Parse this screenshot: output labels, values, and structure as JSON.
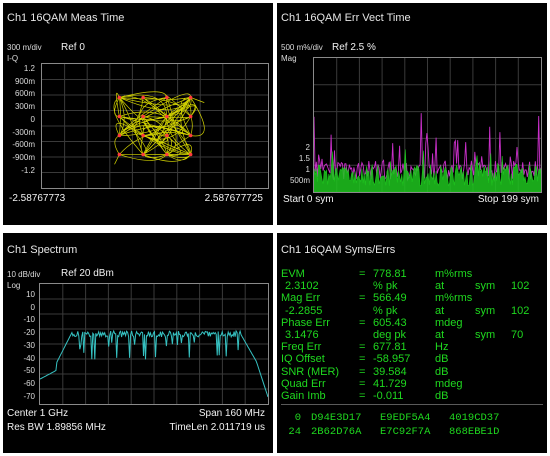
{
  "constellation": {
    "title": "Ch1 16QAM Meas Time",
    "scale": "300 m/div",
    "ref": "Ref 0",
    "format": "I-Q",
    "y_ticks": [
      "1.2",
      "900m",
      "600m",
      "300m",
      "0",
      "-300m",
      "-600m",
      "-900m",
      "-1.2"
    ],
    "x_left": "-2.58767773",
    "x_right": "2.587677725",
    "trace_color": "#e6e600",
    "symbol_color": "#ff3b3b"
  },
  "errvect": {
    "title": "Ch1 16QAM Err Vect Time",
    "scale": "500 m%/div",
    "ref": "Ref 2.5  %",
    "format": "Mag",
    "y_ticks": [
      "2",
      "1.5",
      "1",
      "500m"
    ],
    "start": "Start 0  sym",
    "stop": "Stop 199  sym",
    "trace_colors": [
      "#1fc51f",
      "#c92fc9"
    ]
  },
  "spectrum": {
    "title": "Ch1 Spectrum",
    "scale": "10 dB/div",
    "ref": "Ref 20 dBm",
    "format": "Log",
    "y_ticks": [
      "10",
      "0",
      "-10",
      "-20",
      "-30",
      "-40",
      "-50",
      "-60",
      "-70"
    ],
    "center": "Center 1 GHz",
    "span": "Span 160 MHz",
    "res_bw": "Res BW 1.89856 MHz",
    "timelen": "TimeLen 2.011719 us",
    "trace_color": "#36c2c2"
  },
  "syms": {
    "title": "Ch1 16QAM Syms/Errs",
    "rows": [
      {
        "name": "EVM",
        "eq": "=",
        "value": "778.81",
        "unit": "m%rms",
        "extra": "",
        "num": ""
      },
      {
        "name": "2.3102",
        "eq": "",
        "value": "% pk",
        "unit": "at",
        "extra": "sym",
        "num": "102"
      },
      {
        "name": "Mag Err",
        "eq": "=",
        "value": "566.49",
        "unit": "m%rms",
        "extra": "",
        "num": ""
      },
      {
        "name": "-2.2855",
        "eq": "",
        "value": "% pk",
        "unit": "at",
        "extra": "sym",
        "num": "102"
      },
      {
        "name": "Phase Err",
        "eq": "=",
        "value": "605.43",
        "unit": "mdeg",
        "extra": "",
        "num": ""
      },
      {
        "name": "3.1476",
        "eq": "",
        "value": "deg pk",
        "unit": "at",
        "extra": "sym",
        "num": "70"
      },
      {
        "name": "Freq Err",
        "eq": "=",
        "value": "677.81",
        "unit": "Hz",
        "extra": "",
        "num": ""
      },
      {
        "name": "IQ Offset",
        "eq": "=",
        "value": "-58.957",
        "unit": "dB",
        "extra": "",
        "num": ""
      },
      {
        "name": "SNR (MER)",
        "eq": "=",
        "value": "39.584",
        "unit": "dB",
        "extra": "",
        "num": ""
      },
      {
        "name": "Quad Err",
        "eq": "=",
        "value": "41.729",
        "unit": "mdeg",
        "extra": "",
        "num": ""
      },
      {
        "name": "Gain Imb",
        "eq": "=",
        "value": "-0.011",
        "unit": "dB",
        "extra": "",
        "num": ""
      }
    ],
    "sym_rows": [
      {
        "index": "0",
        "words": [
          "D94E3D17",
          "E9EDF5A4",
          "4019CD37"
        ]
      },
      {
        "index": "24",
        "words": [
          "2B62D76A",
          "E7C92F7A",
          "868EBE1D"
        ]
      }
    ],
    "text_color": "#1fd91f"
  }
}
